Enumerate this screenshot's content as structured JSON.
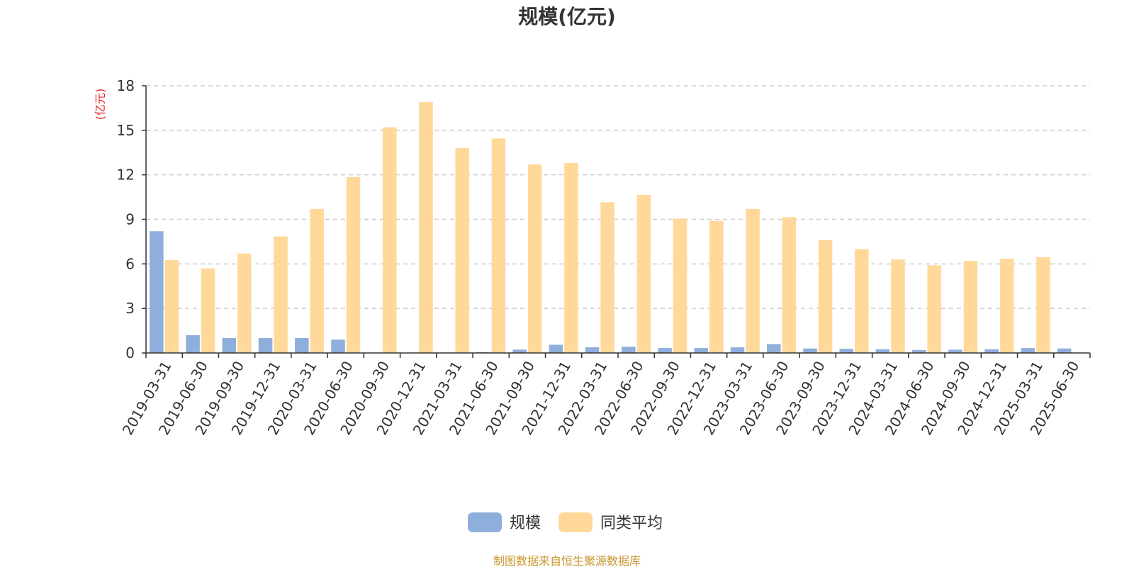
{
  "chart_data": {
    "type": "bar",
    "title": "规模(亿元)",
    "ylabel": "(亿元)",
    "ylim": [
      0,
      18
    ],
    "yticks": [
      0,
      3,
      6,
      9,
      12,
      15,
      18
    ],
    "grid": true,
    "legend_position": "bottom",
    "categories": [
      "2019-03-31",
      "2019-06-30",
      "2019-09-30",
      "2019-12-31",
      "2020-03-31",
      "2020-06-30",
      "2020-09-30",
      "2020-12-31",
      "2021-03-31",
      "2021-06-30",
      "2021-09-30",
      "2021-12-31",
      "2022-03-31",
      "2022-06-30",
      "2022-09-30",
      "2022-12-31",
      "2023-03-31",
      "2023-06-30",
      "2023-09-30",
      "2023-12-31",
      "2024-03-31",
      "2024-06-30",
      "2024-09-30",
      "2024-12-31",
      "2025-03-31",
      "2025-06-30"
    ],
    "series": [
      {
        "name": "规模",
        "color": "#8eaedc",
        "values": [
          8.2,
          1.2,
          1.0,
          1.0,
          1.0,
          0.9,
          0.02,
          0.02,
          0.03,
          0.05,
          0.22,
          0.55,
          0.38,
          0.42,
          0.33,
          0.33,
          0.38,
          0.6,
          0.3,
          0.28,
          0.25,
          0.2,
          0.22,
          0.25,
          0.33,
          0.3
        ]
      },
      {
        "name": "同类平均",
        "color": "#ffd89a",
        "values": [
          6.25,
          5.7,
          6.7,
          7.85,
          9.7,
          11.85,
          15.2,
          16.9,
          13.8,
          14.45,
          12.7,
          12.8,
          10.15,
          10.65,
          9.05,
          8.9,
          9.7,
          9.15,
          7.6,
          7.0,
          6.3,
          5.9,
          6.2,
          6.35,
          6.45,
          null
        ]
      }
    ]
  },
  "footer": {
    "source_text": "制图数据来自恒生聚源数据库"
  }
}
